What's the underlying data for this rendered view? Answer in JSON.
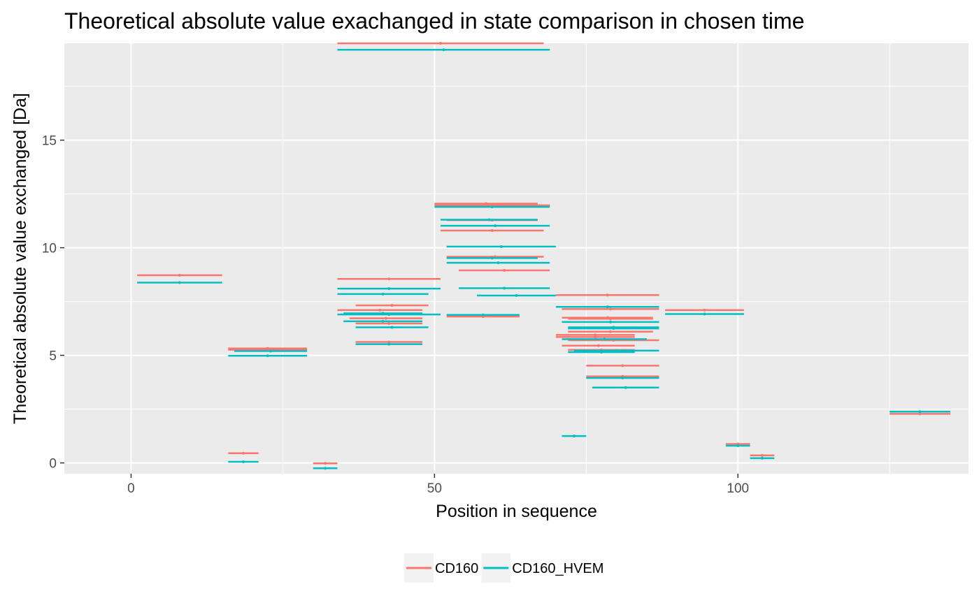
{
  "chart_data": {
    "type": "line",
    "title": "Theoretical absolute value exachanged in state comparison in chosen time",
    "xlabel": "Position in sequence",
    "ylabel": "Theoretical absolute value exchanged [Da]",
    "xlim": [
      -11,
      138
    ],
    "ylim": [
      -0.5,
      19.5
    ],
    "x_ticks": [
      0,
      50,
      100
    ],
    "y_ticks": [
      0,
      5,
      10,
      15
    ],
    "grid": true,
    "legend_position": "bottom",
    "colors": {
      "panel_background": "#ebebeb",
      "grid": "#ffffff",
      "CD160": "#f8766d",
      "CD160_HVEM": "#00bfc4"
    },
    "series": [
      {
        "name": "CD160",
        "color": "#f8766d",
        "segments": [
          {
            "start": 1,
            "end": 15,
            "value": 8.72
          },
          {
            "start": 16,
            "end": 21,
            "value": 0.45
          },
          {
            "start": 16,
            "end": 29,
            "value": 5.32
          },
          {
            "start": 16,
            "end": 29,
            "value": 5.26
          },
          {
            "start": 30,
            "end": 34,
            "value": -0.02
          },
          {
            "start": 34,
            "end": 68,
            "value": 19.5
          },
          {
            "start": 34,
            "end": 51,
            "value": 8.55
          },
          {
            "start": 34,
            "end": 48,
            "value": 7.1
          },
          {
            "start": 36,
            "end": 48,
            "value": 6.72
          },
          {
            "start": 37,
            "end": 49,
            "value": 7.32
          },
          {
            "start": 37,
            "end": 48,
            "value": 6.48
          },
          {
            "start": 37,
            "end": 48,
            "value": 5.62
          },
          {
            "start": 50,
            "end": 67,
            "value": 12.05
          },
          {
            "start": 50,
            "end": 69,
            "value": 11.97
          },
          {
            "start": 51,
            "end": 68,
            "value": 10.8
          },
          {
            "start": 52,
            "end": 67,
            "value": 11.28
          },
          {
            "start": 52,
            "end": 68,
            "value": 9.58
          },
          {
            "start": 52,
            "end": 64,
            "value": 6.8
          },
          {
            "start": 54,
            "end": 69,
            "value": 8.95
          },
          {
            "start": 70,
            "end": 87,
            "value": 7.8
          },
          {
            "start": 71,
            "end": 87,
            "value": 7.15
          },
          {
            "start": 71,
            "end": 86,
            "value": 6.75
          },
          {
            "start": 72,
            "end": 86,
            "value": 6.7
          },
          {
            "start": 70,
            "end": 83,
            "value": 5.95
          },
          {
            "start": 70,
            "end": 83,
            "value": 5.85
          },
          {
            "start": 71,
            "end": 83,
            "value": 5.45
          },
          {
            "start": 72,
            "end": 87,
            "value": 5.7
          },
          {
            "start": 72,
            "end": 83,
            "value": 5.25
          },
          {
            "start": 72,
            "end": 86,
            "value": 6.1
          },
          {
            "start": 75,
            "end": 87,
            "value": 4.52
          },
          {
            "start": 75,
            "end": 87,
            "value": 4.02
          },
          {
            "start": 88,
            "end": 101,
            "value": 7.1
          },
          {
            "start": 98,
            "end": 102,
            "value": 0.88
          },
          {
            "start": 102,
            "end": 106,
            "value": 0.35
          },
          {
            "start": 125,
            "end": 135,
            "value": 2.28
          }
        ]
      },
      {
        "name": "CD160_HVEM",
        "color": "#00bfc4",
        "segments": [
          {
            "start": 1,
            "end": 15,
            "value": 8.38
          },
          {
            "start": 16,
            "end": 21,
            "value": 0.05
          },
          {
            "start": 17,
            "end": 29,
            "value": 5.2
          },
          {
            "start": 16,
            "end": 29,
            "value": 4.98
          },
          {
            "start": 30,
            "end": 34,
            "value": -0.25
          },
          {
            "start": 34,
            "end": 69,
            "value": 19.2
          },
          {
            "start": 34,
            "end": 51,
            "value": 8.1
          },
          {
            "start": 34,
            "end": 49,
            "value": 7.85
          },
          {
            "start": 34,
            "end": 51,
            "value": 6.9
          },
          {
            "start": 35,
            "end": 48,
            "value": 6.95
          },
          {
            "start": 35,
            "end": 48,
            "value": 6.58
          },
          {
            "start": 37,
            "end": 49,
            "value": 6.3
          },
          {
            "start": 37,
            "end": 48,
            "value": 5.52
          },
          {
            "start": 50,
            "end": 69,
            "value": 11.9
          },
          {
            "start": 51,
            "end": 67,
            "value": 11.3
          },
          {
            "start": 51,
            "end": 69,
            "value": 11.02
          },
          {
            "start": 52,
            "end": 70,
            "value": 10.05
          },
          {
            "start": 52,
            "end": 67,
            "value": 9.52
          },
          {
            "start": 52,
            "end": 69,
            "value": 9.3
          },
          {
            "start": 54,
            "end": 69,
            "value": 8.12
          },
          {
            "start": 52,
            "end": 64,
            "value": 6.88
          },
          {
            "start": 57,
            "end": 70,
            "value": 7.78
          },
          {
            "start": 70,
            "end": 87,
            "value": 7.25
          },
          {
            "start": 71,
            "end": 87,
            "value": 6.55
          },
          {
            "start": 72,
            "end": 87,
            "value": 6.3
          },
          {
            "start": 72,
            "end": 87,
            "value": 6.25
          },
          {
            "start": 71,
            "end": 85,
            "value": 5.75
          },
          {
            "start": 72,
            "end": 83,
            "value": 5.15
          },
          {
            "start": 73,
            "end": 87,
            "value": 5.22
          },
          {
            "start": 75,
            "end": 87,
            "value": 3.95
          },
          {
            "start": 76,
            "end": 87,
            "value": 3.5
          },
          {
            "start": 71,
            "end": 75,
            "value": 1.25
          },
          {
            "start": 88,
            "end": 101,
            "value": 6.92
          },
          {
            "start": 98,
            "end": 102,
            "value": 0.8
          },
          {
            "start": 102,
            "end": 106,
            "value": 0.22
          },
          {
            "start": 125,
            "end": 135,
            "value": 2.38
          }
        ]
      }
    ]
  }
}
